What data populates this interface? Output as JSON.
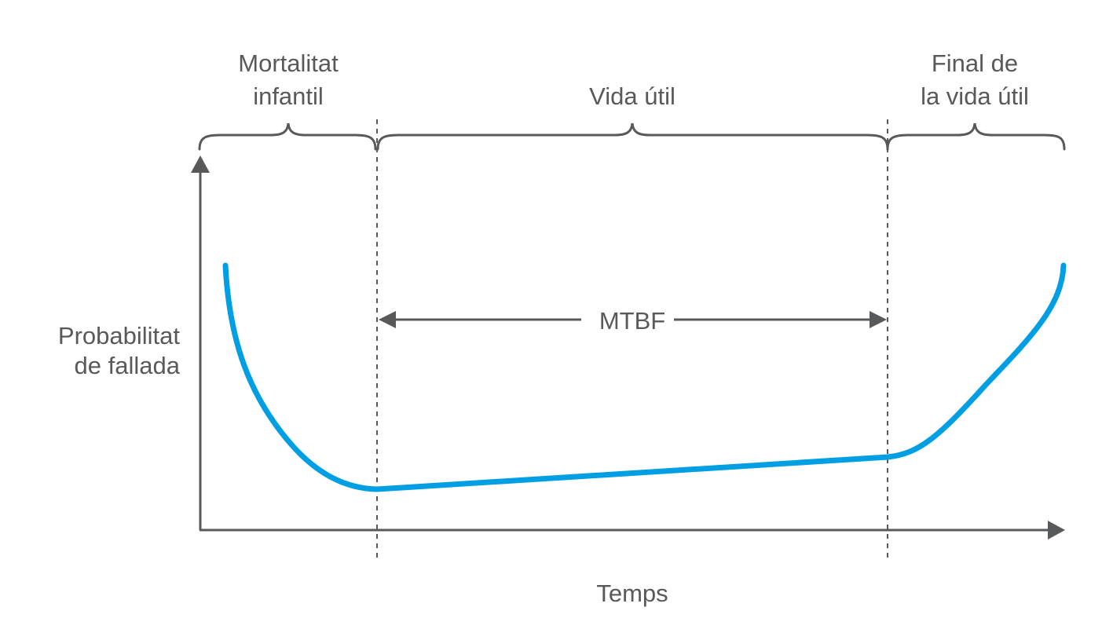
{
  "phases": {
    "infant_mortality": {
      "line1": "Mortalitat",
      "line2": "infantil"
    },
    "useful_life": {
      "label": "Vida útil"
    },
    "end_of_life": {
      "line1": "Final de",
      "line2": "la vida útil"
    }
  },
  "axes": {
    "y_label_line1": "Probabilitat",
    "y_label_line2": "de fallada",
    "x_label": "Temps"
  },
  "mtbf": {
    "label": "MTBF"
  },
  "colors": {
    "curve": "#009fe3",
    "lines": "#58595b",
    "text": "#58595b"
  }
}
